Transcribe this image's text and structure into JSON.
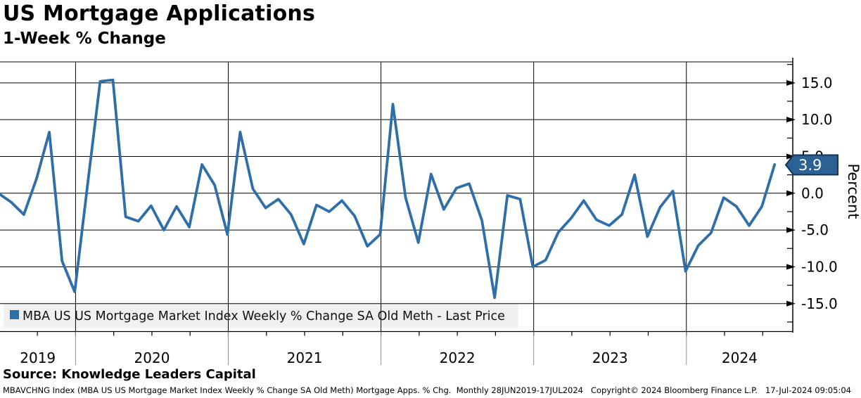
{
  "header": {
    "title": "US Mortgage Applications",
    "subtitle": "1-Week % Change"
  },
  "legend": {
    "label": "MBA US US Mortgage Market Index Weekly % Change SA Old Meth - Last Price"
  },
  "source_line": "Source: Knowledge Leaders Capital",
  "footer": "MBAVCHNG Index (MBA US US Mortgage Market Index Weekly % Change SA Old Meth) Mortgage Apps. % Chg.  Monthly 28JUN2019-17JUL2024   Copyright© 2024 Bloomberg Finance L.P.   17-Jul-2024 09:05:04",
  "colors": {
    "line": "#2f6ea8",
    "tag_bg": "#2c6194",
    "tag_border": "#14365a",
    "tag_text": "#ffffff",
    "legend_bg": "#f0f0f0",
    "grid": "#000000",
    "separator": "#909090"
  },
  "chart_data": {
    "type": "line",
    "title": "US Mortgage Applications",
    "subtitle": "1-Week % Change",
    "ylabel": "Percent",
    "ylim": [
      -17.5,
      17.5
    ],
    "grid": true,
    "legend_position": "bottom-left",
    "last_price": "3.9",
    "yticks": [
      15,
      10,
      5,
      0,
      -5,
      -10,
      -15
    ],
    "ytick_labels": [
      "15.0",
      "10.0",
      "5.0",
      "0.0",
      "-5.0",
      "-10.0",
      "-15.0"
    ],
    "y_minor_ticks": [
      17.5,
      12.5,
      7.5,
      2.5,
      -2.5,
      -7.5,
      -12.5,
      -17.5
    ],
    "x_axis_years": [
      "2019",
      "2020",
      "2021",
      "2022",
      "2023",
      "2024"
    ],
    "x_range_label": "28JUN2019-17JUL2024",
    "frequency": "Monthly",
    "series": [
      {
        "name": "MBA US US Mortgage Market Index Weekly % Change SA Old Meth - Last Price",
        "x": [
          "2019-06",
          "2019-07",
          "2019-08",
          "2019-09",
          "2019-10",
          "2019-11",
          "2019-12",
          "2020-01",
          "2020-02",
          "2020-03",
          "2020-04",
          "2020-05",
          "2020-06",
          "2020-07",
          "2020-08",
          "2020-09",
          "2020-10",
          "2020-11",
          "2020-12",
          "2021-01",
          "2021-02",
          "2021-03",
          "2021-04",
          "2021-05",
          "2021-06",
          "2021-07",
          "2021-08",
          "2021-09",
          "2021-10",
          "2021-11",
          "2021-12",
          "2022-01",
          "2022-02",
          "2022-03",
          "2022-04",
          "2022-05",
          "2022-06",
          "2022-07",
          "2022-08",
          "2022-09",
          "2022-10",
          "2022-11",
          "2022-12",
          "2023-01",
          "2023-02",
          "2023-03",
          "2023-04",
          "2023-05",
          "2023-06",
          "2023-07",
          "2023-08",
          "2023-09",
          "2023-10",
          "2023-11",
          "2023-12",
          "2024-01",
          "2024-02",
          "2024-03",
          "2024-04",
          "2024-05",
          "2024-06",
          "2024-07"
        ],
        "values": [
          0.0,
          -1.2,
          -2.9,
          2.0,
          8.3,
          -9.2,
          -13.4,
          1.0,
          15.2,
          15.4,
          -3.2,
          -3.8,
          -1.7,
          -5.0,
          -1.8,
          -4.6,
          3.9,
          1.1,
          -5.6,
          8.3,
          0.6,
          -2.0,
          -0.8,
          -2.9,
          -6.9,
          -1.6,
          -2.5,
          -1.0,
          -3.1,
          -7.2,
          -5.6,
          12.1,
          -0.6,
          -6.7,
          2.6,
          -2.2,
          0.7,
          1.3,
          -3.7,
          -14.2,
          -0.3,
          -0.8,
          -10.0,
          -9.1,
          -5.3,
          -3.4,
          -1.0,
          -3.6,
          -4.4,
          -2.9,
          2.5,
          -5.9,
          -1.9,
          0.3,
          -10.6,
          -7.1,
          -5.4,
          -0.6,
          -1.8,
          -4.4,
          -1.8,
          3.9
        ]
      }
    ]
  }
}
